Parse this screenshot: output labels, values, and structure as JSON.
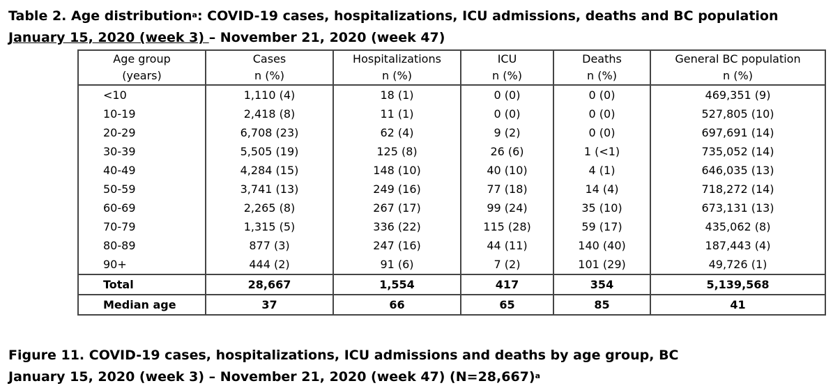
{
  "table": {
    "title_main": "Table 2. Age distribution",
    "title_sup": "a",
    "title_rest": ": COVID-19 cases, hospitalizations, ICU admissions, deaths and BC population",
    "subtitle_underlined": "January 15, 2020 (week 3) ",
    "subtitle_rest": "– November 21, 2020 (week 47)",
    "header_row1": [
      "Age group",
      "Cases",
      "Hospitalizations",
      "ICU",
      "Deaths",
      "General BC population"
    ],
    "header_row2": [
      "(years)",
      "n (%)",
      "n (%)",
      "n (%)",
      "n (%)",
      "n (%)"
    ],
    "rows": [
      [
        "<10",
        "1,110 (4)",
        "18 (1)",
        "0 (0)",
        "0 (0)",
        "469,351 (9)"
      ],
      [
        "10-19",
        "2,418 (8)",
        "11 (1)",
        "0 (0)",
        "0 (0)",
        "527,805 (10)"
      ],
      [
        "20-29",
        "6,708 (23)",
        "62 (4)",
        "9 (2)",
        "0 (0)",
        "697,691 (14)"
      ],
      [
        "30-39",
        "5,505 (19)",
        "125 (8)",
        "26 (6)",
        "1 (<1)",
        "735,052 (14)"
      ],
      [
        "40-49",
        "4,284 (15)",
        "148 (10)",
        "40 (10)",
        "4 (1)",
        "646,035 (13)"
      ],
      [
        "50-59",
        "3,741 (13)",
        "249 (16)",
        "77 (18)",
        "14 (4)",
        "718,272 (14)"
      ],
      [
        "60-69",
        "2,265 (8)",
        "267 (17)",
        "99 (24)",
        "35 (10)",
        "673,131 (13)"
      ],
      [
        "70-79",
        "1,315 (5)",
        "336 (22)",
        "115 (28)",
        "59 (17)",
        "435,062 (8)"
      ],
      [
        "80-89",
        "877 (3)",
        "247 (16)",
        "44 (11)",
        "140 (40)",
        "187,443 (4)"
      ],
      [
        "90+",
        "444 (2)",
        "91 (6)",
        "7 (2)",
        "101 (29)",
        "49,726 (1)"
      ]
    ],
    "total_row": [
      "Total",
      "28,667",
      "1,554",
      "417",
      "354",
      "5,139,568"
    ],
    "median_row": [
      "Median age",
      "37",
      "66",
      "65",
      "85",
      "41"
    ]
  },
  "figure": {
    "title_line1": "Figure 11. COVID-19 cases, hospitalizations, ICU admissions and deaths by age group, BC",
    "title_line2": "January 15, 2020 (week 3) – November 21, 2020 (week 47) (N=28,667)",
    "title_sup": "a"
  }
}
